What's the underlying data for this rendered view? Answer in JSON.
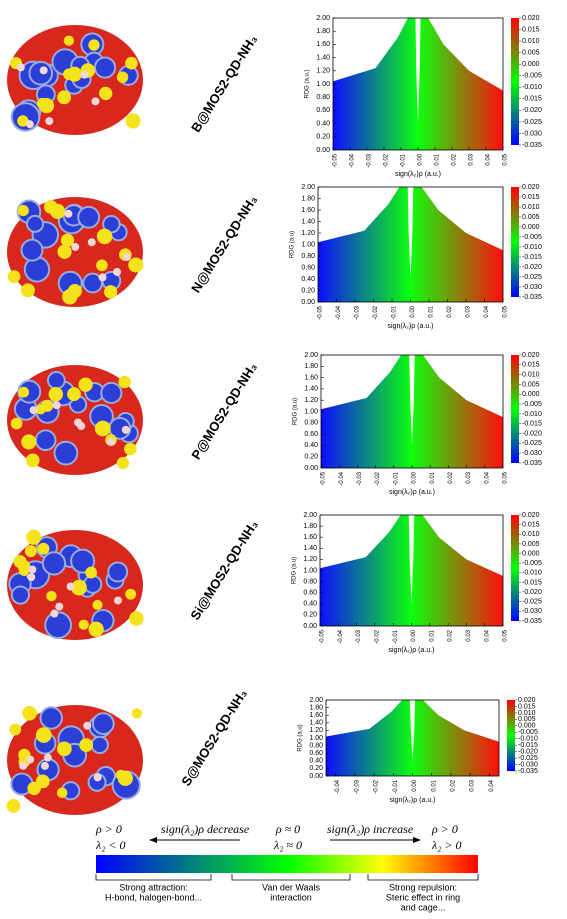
{
  "chart_data": [
    {
      "type": "scatter",
      "label": "B@MOS2-QD-NH₃",
      "ylabel": "RDG (a.u.)",
      "xlabel": "sign(λ₂)ρ (a.u.)",
      "xlim": [
        -0.05,
        0.05
      ],
      "xticks": [
        -0.05,
        -0.04,
        -0.03,
        -0.02,
        -0.01,
        {
          "value": 0,
          "label": "0.00"
        },
        0.01,
        0.02,
        0.03,
        0.04,
        0.05
      ],
      "ylim": [
        0,
        2
      ],
      "yticks": [
        {
          "value": 0,
          "label": "0.00"
        },
        {
          "value": 0.2,
          "label": "0.20"
        },
        {
          "value": 0.4,
          "label": "0.40"
        },
        {
          "value": 0.6,
          "label": "0.60"
        },
        {
          "value": 0.8,
          "label": "0.80"
        },
        {
          "value": 1,
          "label": "1.00"
        },
        {
          "value": 1.2,
          "label": "1.20"
        },
        {
          "value": 1.4,
          "label": "1.40"
        },
        {
          "value": 1.6,
          "label": "1.60"
        },
        {
          "value": 1.8,
          "label": "1.80"
        },
        {
          "value": 2,
          "label": "2.00"
        }
      ],
      "clim": [
        -0.035,
        0.02
      ],
      "cticks": [
        {
          "value": 0.02,
          "label": "0.020"
        },
        0.015,
        {
          "value": 0.01,
          "label": "0.010"
        },
        0.005,
        {
          "value": 0,
          "label": "0.000"
        },
        -0.005,
        {
          "value": -0.01,
          "label": "-0.010"
        },
        -0.015,
        {
          "value": -0.02,
          "label": "-0.020"
        },
        -0.025,
        {
          "value": -0.03,
          "label": "-0.030"
        },
        -0.035
      ],
      "colors": [
        "#0000ff",
        "#00ff00",
        "#ff0000"
      ]
    },
    {
      "type": "scatter",
      "label": "N@MOS2-QD-NH₃",
      "ylabel": "RDG (a.u)",
      "xlabel": "sign(λ₂)ρ (a.u.)",
      "xlim": [
        -0.05,
        0.05
      ],
      "xticks": [
        -0.05,
        -0.04,
        -0.03,
        -0.02,
        -0.01,
        {
          "value": 0,
          "label": "0.00"
        },
        0.01,
        0.02,
        0.03,
        0.04,
        0.05
      ],
      "ylim": [
        0,
        2
      ],
      "yticks": [
        {
          "value": 0,
          "label": "0.00"
        },
        {
          "value": 0.2,
          "label": "0.20"
        },
        {
          "value": 0.4,
          "label": "0.40"
        },
        {
          "value": 0.6,
          "label": "0.60"
        },
        {
          "value": 0.8,
          "label": "0.80"
        },
        {
          "value": 1,
          "label": "1.00"
        },
        {
          "value": 1.2,
          "label": "1.20"
        },
        {
          "value": 1.4,
          "label": "1.40"
        },
        {
          "value": 1.6,
          "label": "1.60"
        },
        {
          "value": 1.8,
          "label": "1.80"
        },
        {
          "value": 2,
          "label": "2.00"
        }
      ],
      "clim": [
        -0.035,
        0.02
      ],
      "cticks": [
        {
          "value": 0.02,
          "label": "0.020"
        },
        0.015,
        {
          "value": 0.01,
          "label": "0.010"
        },
        0.005,
        {
          "value": 0,
          "label": "0.000"
        },
        -0.005,
        {
          "value": -0.01,
          "label": "-0.010"
        },
        -0.015,
        {
          "value": -0.02,
          "label": "-0.020"
        },
        -0.025,
        {
          "value": -0.03,
          "label": "-0.030"
        },
        -0.035
      ],
      "colors": [
        "#0000ff",
        "#00ff00",
        "#ff0000"
      ]
    },
    {
      "type": "scatter",
      "label": "P@MOS2-QD-NH₃",
      "ylabel": "RDG (a.u)",
      "xlabel": "sign(λ₂)ρ (a.u.)",
      "xlim": [
        -0.05,
        0.05
      ],
      "xticks": [
        -0.05,
        -0.04,
        -0.03,
        -0.02,
        -0.01,
        {
          "value": 0,
          "label": "0.00"
        },
        0.01,
        0.02,
        0.03,
        0.04,
        0.05
      ],
      "ylim": [
        0,
        2
      ],
      "yticks": [
        {
          "value": 0,
          "label": "0.00"
        },
        {
          "value": 0.2,
          "label": "0.20"
        },
        {
          "value": 0.4,
          "label": "0.40"
        },
        {
          "value": 0.6,
          "label": "0.60"
        },
        {
          "value": 0.8,
          "label": "0.80"
        },
        {
          "value": 1,
          "label": "1.00"
        },
        {
          "value": 1.2,
          "label": "1.20"
        },
        {
          "value": 1.4,
          "label": "1.40"
        },
        {
          "value": 1.6,
          "label": "1.60"
        },
        {
          "value": 1.8,
          "label": "1.80"
        },
        {
          "value": 2,
          "label": "2.00"
        }
      ],
      "clim": [
        -0.035,
        0.02
      ],
      "cticks": [
        {
          "value": 0.02,
          "label": "0.020"
        },
        0.015,
        {
          "value": 0.01,
          "label": "0.010"
        },
        0.005,
        {
          "value": 0,
          "label": "0.000"
        },
        -0.005,
        {
          "value": -0.01,
          "label": "-0.010"
        },
        -0.015,
        {
          "value": -0.02,
          "label": "-0.020"
        },
        -0.025,
        {
          "value": -0.03,
          "label": "-0.030"
        },
        -0.035
      ],
      "colors": [
        "#0000ff",
        "#00ff00",
        "#ff0000"
      ]
    },
    {
      "type": "scatter",
      "label": "Si@MOS2-QD-NH₃",
      "ylabel": "RDG (a.u)",
      "xlabel": "sign(λ₂)ρ (a.u.)",
      "xlim": [
        -0.05,
        0.05
      ],
      "xticks": [
        -0.05,
        -0.04,
        -0.03,
        -0.02,
        -0.01,
        {
          "value": 0,
          "label": "0.00"
        },
        0.01,
        0.02,
        0.03,
        0.04,
        0.05
      ],
      "ylim": [
        0,
        2
      ],
      "yticks": [
        {
          "value": 0,
          "label": "0.00"
        },
        {
          "value": 0.2,
          "label": "0.20"
        },
        {
          "value": 0.4,
          "label": "0.40"
        },
        {
          "value": 0.6,
          "label": "0.60"
        },
        {
          "value": 0.8,
          "label": "0.80"
        },
        {
          "value": 1,
          "label": "1.00"
        },
        {
          "value": 1.2,
          "label": "1.20"
        },
        {
          "value": 1.4,
          "label": "1.40"
        },
        {
          "value": 1.6,
          "label": "1.60"
        },
        {
          "value": 1.8,
          "label": "1.80"
        },
        {
          "value": 2,
          "label": "2.00"
        }
      ],
      "clim": [
        -0.035,
        0.02
      ],
      "cticks": [
        {
          "value": 0.02,
          "label": "0.020"
        },
        0.015,
        {
          "value": 0.01,
          "label": "0.010"
        },
        0.005,
        {
          "value": 0,
          "label": "0.000"
        },
        -0.005,
        {
          "value": -0.01,
          "label": "-0.010"
        },
        -0.015,
        {
          "value": -0.02,
          "label": "-0.020"
        },
        -0.025,
        {
          "value": -0.03,
          "label": "-0.030"
        },
        -0.035
      ],
      "colors": [
        "#0000ff",
        "#00ff00",
        "#ff0000"
      ]
    },
    {
      "type": "scatter",
      "label": "S@MOS2-QD-NH₃",
      "ylabel": "RDG (a.u)",
      "xlabel": "sign(λ₂)ρ (a.u.)",
      "xlim": [
        -0.045,
        0.045
      ],
      "xticks": [
        -0.04,
        -0.03,
        -0.02,
        -0.01,
        {
          "value": 0,
          "label": "0.00"
        },
        0.01,
        0.02,
        0.03,
        0.04
      ],
      "ylim": [
        0,
        2
      ],
      "yticks": [
        {
          "value": 0,
          "label": "0.00"
        },
        {
          "value": 0.2,
          "label": "0.20"
        },
        {
          "value": 0.4,
          "label": "0.40"
        },
        {
          "value": 0.6,
          "label": "0.60"
        },
        {
          "value": 0.8,
          "label": "0.80"
        },
        {
          "value": 1,
          "label": "1.00"
        },
        {
          "value": 1.2,
          "label": "1.20"
        },
        {
          "value": 1.4,
          "label": "1.40"
        },
        {
          "value": 1.6,
          "label": "1.60"
        },
        {
          "value": 1.8,
          "label": "1.80"
        },
        {
          "value": 2,
          "label": "2.00"
        }
      ],
      "clim": [
        -0.035,
        0.02
      ],
      "cticks": [
        {
          "value": 0.02,
          "label": "0.020"
        },
        0.015,
        {
          "value": 0.01,
          "label": "0.010"
        },
        0.005,
        {
          "value": 0,
          "label": "0.000"
        },
        -0.005,
        {
          "value": -0.01,
          "label": "-0.010"
        },
        -0.015,
        {
          "value": -0.02,
          "label": "-0.020"
        },
        -0.025,
        {
          "value": -0.03,
          "label": "-0.030"
        },
        -0.035
      ],
      "colors": [
        "#0000ff",
        "#00ff00",
        "#ff0000"
      ]
    }
  ],
  "legend": {
    "left_top": "ρ > 0",
    "left_bottom": "λ₂ < 0",
    "decrease": "sign(λ₂)ρ decrease",
    "mid_top": "ρ ≈ 0",
    "mid_bottom": "λ₂ ≈ 0",
    "increase": "sign(λ₂)ρ increase",
    "right_top": "ρ > 0",
    "right_bottom": "λ₂ > 0",
    "boxes": [
      [
        "Strong attraction:",
        "H-bond, halogen-bond..."
      ],
      [
        "Van der Waals",
        "interaction"
      ],
      [
        "Strong repulsion:",
        "Steric effect in ring",
        "and cage..."
      ]
    ]
  }
}
